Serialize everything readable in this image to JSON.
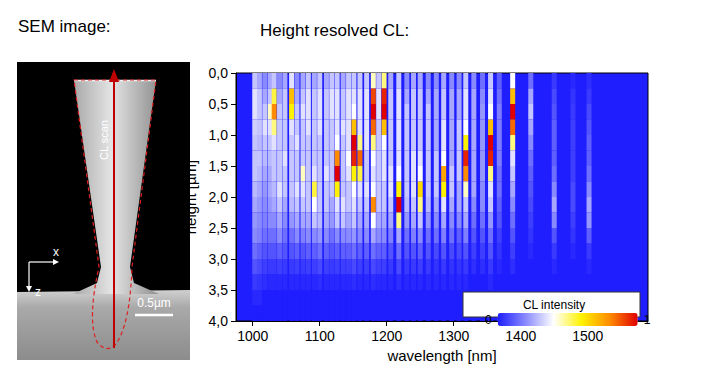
{
  "sem_panel": {
    "title": "SEM image:",
    "scan_label": "CL scan",
    "axes": [
      "x",
      "z"
    ],
    "scale_bar": "0.5µm"
  },
  "chart_data": {
    "type": "heatmap",
    "title": "Height resolved CL:",
    "x_label": "wavelength [nm]",
    "y_label": "height [µm]",
    "xlim": [
      975,
      1590
    ],
    "xticks": [
      1000,
      1100,
      1200,
      1300,
      1400,
      1500
    ],
    "ylim": [
      0,
      4
    ],
    "yticks": [
      {
        "value": 0,
        "label": "0,0"
      },
      {
        "value": 0.5,
        "label": "0,5"
      },
      {
        "value": 1,
        "label": "1,0"
      },
      {
        "value": 1.5,
        "label": "1,5"
      },
      {
        "value": 2,
        "label": "2,0"
      },
      {
        "value": 2.5,
        "label": "2,5"
      },
      {
        "value": 3,
        "label": "3,0"
      },
      {
        "value": 3.5,
        "label": "3,5"
      },
      {
        "value": 4,
        "label": "4,0"
      }
    ],
    "x": [
      1003,
      1010,
      1018,
      1026,
      1032,
      1040,
      1048,
      1058,
      1066,
      1075,
      1083,
      1092,
      1100,
      1110,
      1118,
      1126,
      1135,
      1143,
      1151,
      1160,
      1170,
      1180,
      1188,
      1196,
      1206,
      1218,
      1230,
      1240,
      1250,
      1262,
      1274,
      1285,
      1297,
      1308,
      1318,
      1330,
      1343,
      1355,
      1368,
      1388,
      1415,
      1450,
      1478,
      1502
    ],
    "y": [
      0.125,
      0.375,
      0.625,
      0.875,
      1.125,
      1.375,
      1.625,
      1.875,
      2.125,
      2.375,
      2.625,
      2.875,
      3.125,
      3.375,
      3.625,
      3.875
    ],
    "z": [
      [
        0.3,
        0.35,
        0.35,
        0.32,
        0.3,
        0.3,
        0.3,
        0.28,
        0.25,
        0.22,
        0.2,
        0.15,
        0.1,
        0.05,
        0.02,
        0
      ],
      [
        0.25,
        0.3,
        0.3,
        0.3,
        0.28,
        0.3,
        0.28,
        0.25,
        0.22,
        0.2,
        0.18,
        0.12,
        0.08,
        0.04,
        0.02,
        0
      ],
      [
        0.2,
        0.25,
        0.3,
        0.35,
        0.3,
        0.28,
        0.25,
        0.22,
        0.2,
        0.18,
        0.15,
        0.1,
        0.06,
        0.03,
        0,
        0
      ],
      [
        0.25,
        0.3,
        0.45,
        0.35,
        0.3,
        0.28,
        0.25,
        0.25,
        0.22,
        0.2,
        0.15,
        0.1,
        0.05,
        0.02,
        0,
        0
      ],
      [
        0.3,
        0.55,
        0.8,
        0.5,
        0.35,
        0.3,
        0.3,
        0.28,
        0.25,
        0.2,
        0.15,
        0.1,
        0.05,
        0.02,
        0,
        0
      ],
      [
        0.2,
        0.25,
        0.3,
        0.3,
        0.3,
        0.3,
        0.3,
        0.35,
        0.3,
        0.25,
        0.2,
        0.12,
        0.06,
        0.02,
        0,
        0
      ],
      [
        0.25,
        0.3,
        0.3,
        0.3,
        0.3,
        0.35,
        0.3,
        0.3,
        0.25,
        0.2,
        0.15,
        0.1,
        0.05,
        0.02,
        0,
        0
      ],
      [
        0.35,
        0.7,
        0.6,
        0.35,
        0.3,
        0.3,
        0.3,
        0.3,
        0.28,
        0.22,
        0.15,
        0.1,
        0.05,
        0.02,
        0,
        0
      ],
      [
        0.2,
        0.25,
        0.3,
        0.3,
        0.35,
        0.3,
        0.3,
        0.35,
        0.3,
        0.25,
        0.2,
        0.12,
        0.06,
        0.02,
        0,
        0
      ],
      [
        0.25,
        0.3,
        0.35,
        0.3,
        0.3,
        0.3,
        0.45,
        0.35,
        0.3,
        0.25,
        0.18,
        0.1,
        0.05,
        0.02,
        0,
        0
      ],
      [
        0.3,
        0.35,
        0.35,
        0.35,
        0.3,
        0.3,
        0.3,
        0.3,
        0.3,
        0.25,
        0.2,
        0.12,
        0.06,
        0.02,
        0,
        0
      ],
      [
        0.25,
        0.3,
        0.3,
        0.3,
        0.3,
        0.3,
        0.35,
        0.55,
        0.4,
        0.3,
        0.2,
        0.12,
        0.06,
        0.02,
        0,
        0
      ],
      [
        0.3,
        0.35,
        0.35,
        0.35,
        0.3,
        0.3,
        0.3,
        0.3,
        0.3,
        0.28,
        0.22,
        0.15,
        0.08,
        0.03,
        0,
        0
      ],
      [
        0.25,
        0.3,
        0.3,
        0.3,
        0.3,
        0.3,
        0.35,
        0.3,
        0.3,
        0.25,
        0.2,
        0.12,
        0.06,
        0.02,
        0,
        0
      ],
      [
        0.3,
        0.35,
        0.35,
        0.3,
        0.3,
        0.3,
        0.3,
        0.3,
        0.25,
        0.22,
        0.15,
        0.1,
        0.05,
        0.02,
        0,
        0
      ],
      [
        0.3,
        0.35,
        0.35,
        0.35,
        0.4,
        0.8,
        1,
        0.6,
        0.35,
        0.3,
        0.2,
        0.12,
        0.06,
        0.02,
        0,
        0
      ],
      [
        0.25,
        0.3,
        0.3,
        0.35,
        0.3,
        0.3,
        0.3,
        0.3,
        0.35,
        0.3,
        0.2,
        0.12,
        0.06,
        0.02,
        0,
        0
      ],
      [
        0.3,
        0.35,
        0.35,
        0.35,
        0.35,
        0.4,
        0.35,
        0.3,
        0.3,
        0.25,
        0.2,
        0.12,
        0.06,
        0.02,
        0,
        0
      ],
      [
        0.3,
        0.35,
        0.4,
        0.7,
        1,
        0.95,
        0.6,
        0.4,
        0.35,
        0.3,
        0.22,
        0.15,
        0.08,
        0.03,
        0,
        0
      ],
      [
        0.3,
        0.35,
        0.35,
        0.35,
        0.5,
        0.85,
        0.55,
        0.35,
        0.3,
        0.25,
        0.2,
        0.12,
        0.06,
        0.02,
        0,
        0
      ],
      [
        0.3,
        0.35,
        0.35,
        0.35,
        0.35,
        0.3,
        0.3,
        0.35,
        0.3,
        0.25,
        0.2,
        0.12,
        0.06,
        0.02,
        0,
        0
      ],
      [
        0.45,
        0.9,
        1,
        0.85,
        0.5,
        0.4,
        0.35,
        0.4,
        0.8,
        0.4,
        0.25,
        0.15,
        0.08,
        0.03,
        0,
        0
      ],
      [
        0.3,
        0.35,
        0.35,
        0.3,
        0.3,
        0.3,
        0.3,
        0.3,
        0.3,
        0.25,
        0.2,
        0.12,
        0.06,
        0.02,
        0,
        0
      ],
      [
        0.5,
        0.95,
        1,
        0.7,
        0.4,
        0.35,
        0.35,
        0.3,
        0.3,
        0.25,
        0.2,
        0.12,
        0.06,
        0.02,
        0,
        0
      ],
      [
        0.25,
        0.3,
        0.3,
        0.3,
        0.3,
        0.3,
        0.35,
        0.35,
        0.3,
        0.25,
        0.18,
        0.1,
        0.05,
        0.02,
        0,
        0
      ],
      [
        0.3,
        0.35,
        0.35,
        0.35,
        0.35,
        0.35,
        0.4,
        0.6,
        1,
        0.5,
        0.25,
        0.15,
        0.08,
        0.03,
        0,
        0
      ],
      [
        0.2,
        0.25,
        0.3,
        0.3,
        0.3,
        0.3,
        0.3,
        0.3,
        0.28,
        0.22,
        0.15,
        0.1,
        0.05,
        0.02,
        0,
        0
      ],
      [
        0.25,
        0.3,
        0.3,
        0.3,
        0.3,
        0.35,
        0.35,
        0.35,
        0.3,
        0.25,
        0.18,
        0.1,
        0.05,
        0.02,
        0,
        0
      ],
      [
        0.25,
        0.3,
        0.3,
        0.3,
        0.3,
        0.35,
        0.4,
        0.65,
        0.5,
        0.3,
        0.2,
        0.12,
        0.06,
        0.02,
        0,
        0
      ],
      [
        0.2,
        0.25,
        0.3,
        0.3,
        0.3,
        0.3,
        0.3,
        0.3,
        0.28,
        0.22,
        0.15,
        0.1,
        0.05,
        0.02,
        0,
        0
      ],
      [
        0.2,
        0.25,
        0.25,
        0.25,
        0.25,
        0.3,
        0.3,
        0.3,
        0.25,
        0.2,
        0.15,
        0.08,
        0.04,
        0.02,
        0,
        0
      ],
      [
        0.25,
        0.3,
        0.3,
        0.35,
        0.35,
        0.4,
        0.75,
        0.6,
        0.35,
        0.25,
        0.18,
        0.1,
        0.05,
        0.02,
        0,
        0
      ],
      [
        0.2,
        0.25,
        0.25,
        0.25,
        0.25,
        0.25,
        0.3,
        0.3,
        0.25,
        0.2,
        0.15,
        0.08,
        0.04,
        0.02,
        0,
        0
      ],
      [
        0.2,
        0.25,
        0.25,
        0.3,
        0.3,
        0.3,
        0.3,
        0.25,
        0.25,
        0.2,
        0.12,
        0.08,
        0.04,
        0.02,
        0,
        0
      ],
      [
        0.3,
        0.35,
        0.35,
        0.4,
        0.6,
        0.95,
        0.8,
        0.45,
        0.3,
        0.25,
        0.18,
        0.1,
        0.05,
        0.02,
        0,
        0
      ],
      [
        0.2,
        0.25,
        0.25,
        0.25,
        0.25,
        0.25,
        0.25,
        0.25,
        0.2,
        0.15,
        0.1,
        0.06,
        0.03,
        0,
        0,
        0
      ],
      [
        0.15,
        0.2,
        0.22,
        0.22,
        0.22,
        0.22,
        0.22,
        0.2,
        0.2,
        0.15,
        0.1,
        0.06,
        0.03,
        0,
        0,
        0
      ],
      [
        0.3,
        0.35,
        0.4,
        0.7,
        1,
        0.95,
        0.5,
        0.35,
        0.3,
        0.22,
        0.15,
        0.1,
        0.05,
        0.02,
        0,
        0
      ],
      [
        0.12,
        0.15,
        0.18,
        0.18,
        0.18,
        0.18,
        0.15,
        0.15,
        0.12,
        0.1,
        0.06,
        0.04,
        0.02,
        0,
        0,
        0
      ],
      [
        0.4,
        0.7,
        1,
        0.85,
        0.5,
        0.35,
        0.3,
        0.25,
        0.2,
        0.15,
        0.1,
        0.06,
        0.03,
        0,
        0,
        0
      ],
      [
        0.15,
        0.25,
        0.3,
        0.25,
        0.2,
        0.15,
        0.12,
        0.1,
        0.08,
        0.06,
        0.04,
        0.02,
        0,
        0,
        0,
        0
      ],
      [
        0.05,
        0.08,
        0.1,
        0.12,
        0.12,
        0.12,
        0.15,
        0.2,
        0.25,
        0.2,
        0.1,
        0.05,
        0.02,
        0,
        0,
        0
      ],
      [
        0.02,
        0.04,
        0.05,
        0.06,
        0.06,
        0.06,
        0.06,
        0.08,
        0.08,
        0.06,
        0.04,
        0.02,
        0,
        0,
        0,
        0
      ],
      [
        0.03,
        0.05,
        0.08,
        0.1,
        0.12,
        0.12,
        0.15,
        0.2,
        0.25,
        0.22,
        0.12,
        0.05,
        0.02,
        0,
        0,
        0
      ]
    ],
    "colorbar": {
      "label": "CL intensity",
      "range": [
        0,
        1
      ],
      "ticks": [
        0,
        1
      ]
    }
  }
}
